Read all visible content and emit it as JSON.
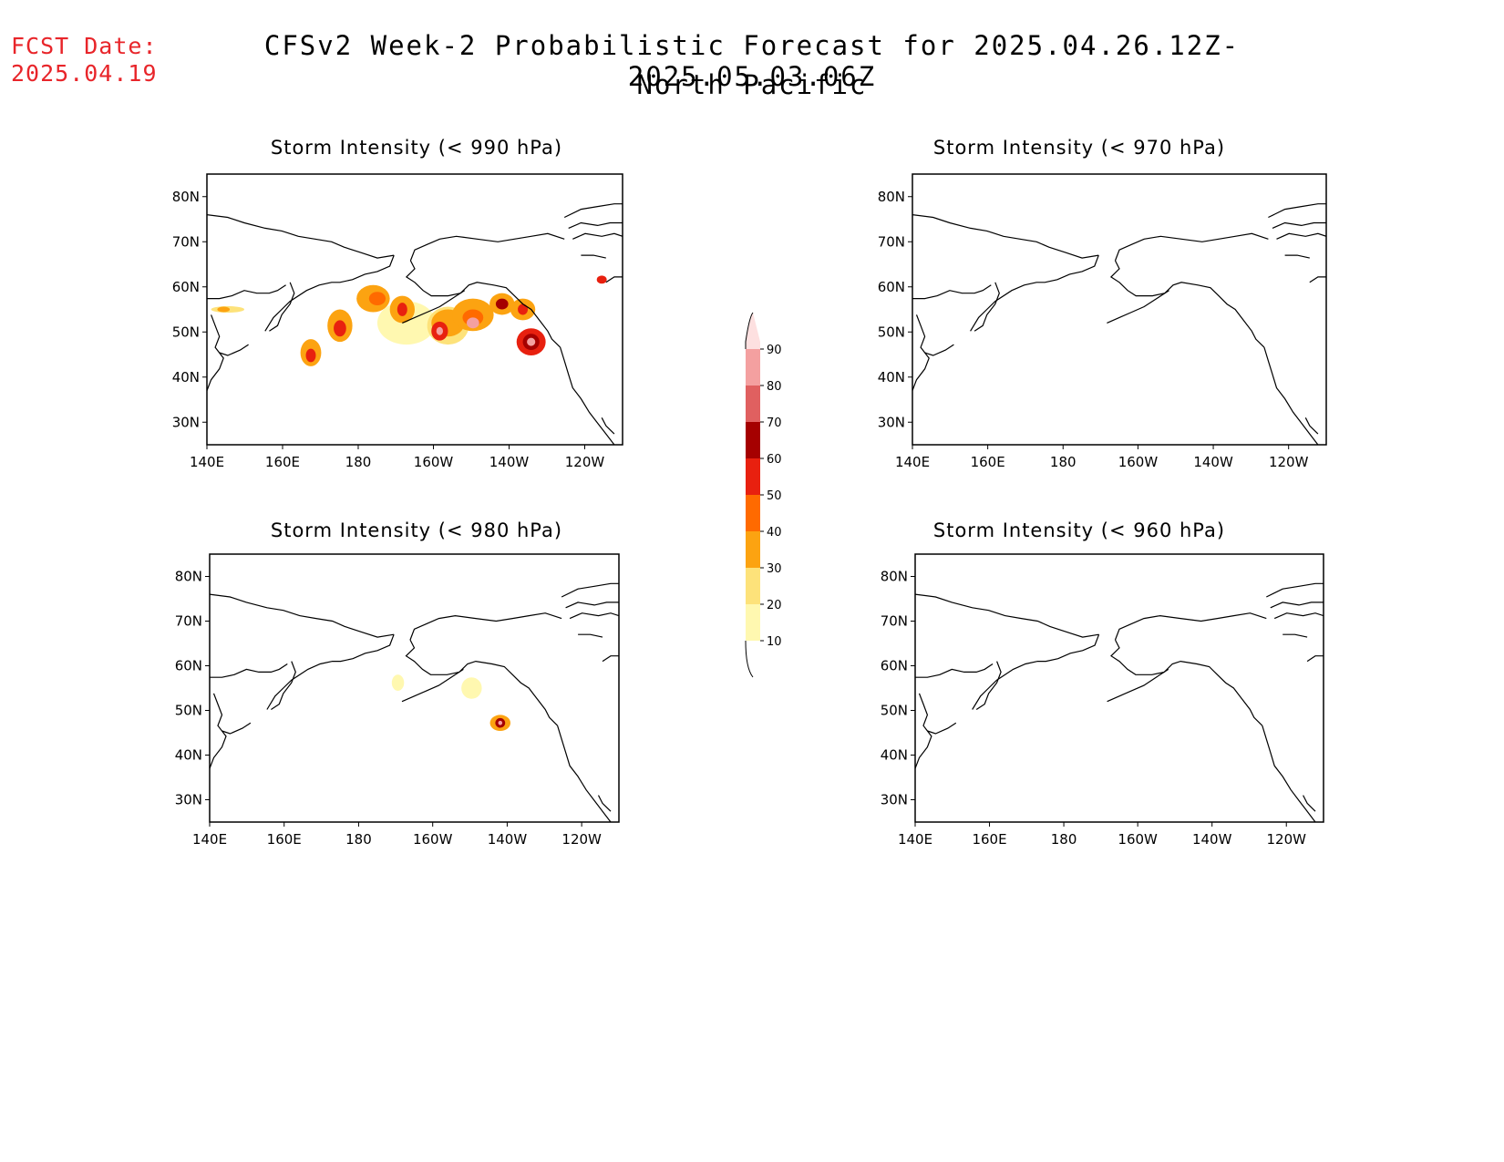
{
  "forecast_date": {
    "label": "FCST Date:",
    "value": "2025.04.19"
  },
  "title": "CFSv2 Week-2 Probabilistic Forecast for 2025.04.26.12Z-2025.05.03.06Z",
  "subtitle": "North Pacific",
  "panels": [
    {
      "id": "p990",
      "title": "Storm Intensity (< 990 hPa)"
    },
    {
      "id": "p970",
      "title": "Storm Intensity (< 970 hPa)"
    },
    {
      "id": "p980",
      "title": "Storm Intensity (< 980 hPa)"
    },
    {
      "id": "p960",
      "title": "Storm Intensity (< 960 hPa)"
    }
  ],
  "lat_ticks": [
    "80N",
    "70N",
    "60N",
    "50N",
    "40N",
    "30N"
  ],
  "lon_ticks": [
    "140E",
    "160E",
    "180",
    "160W",
    "140W",
    "120W"
  ],
  "colorbar": {
    "levels": [
      "10",
      "20",
      "30",
      "40",
      "50",
      "60",
      "70",
      "80",
      "90"
    ],
    "colors": [
      "#fff8b0",
      "#fde27a",
      "#fca311",
      "#ff6a00",
      "#e8200f",
      "#a50000",
      "#e06060",
      "#f4a0a0",
      "#fde0e0"
    ]
  }
}
